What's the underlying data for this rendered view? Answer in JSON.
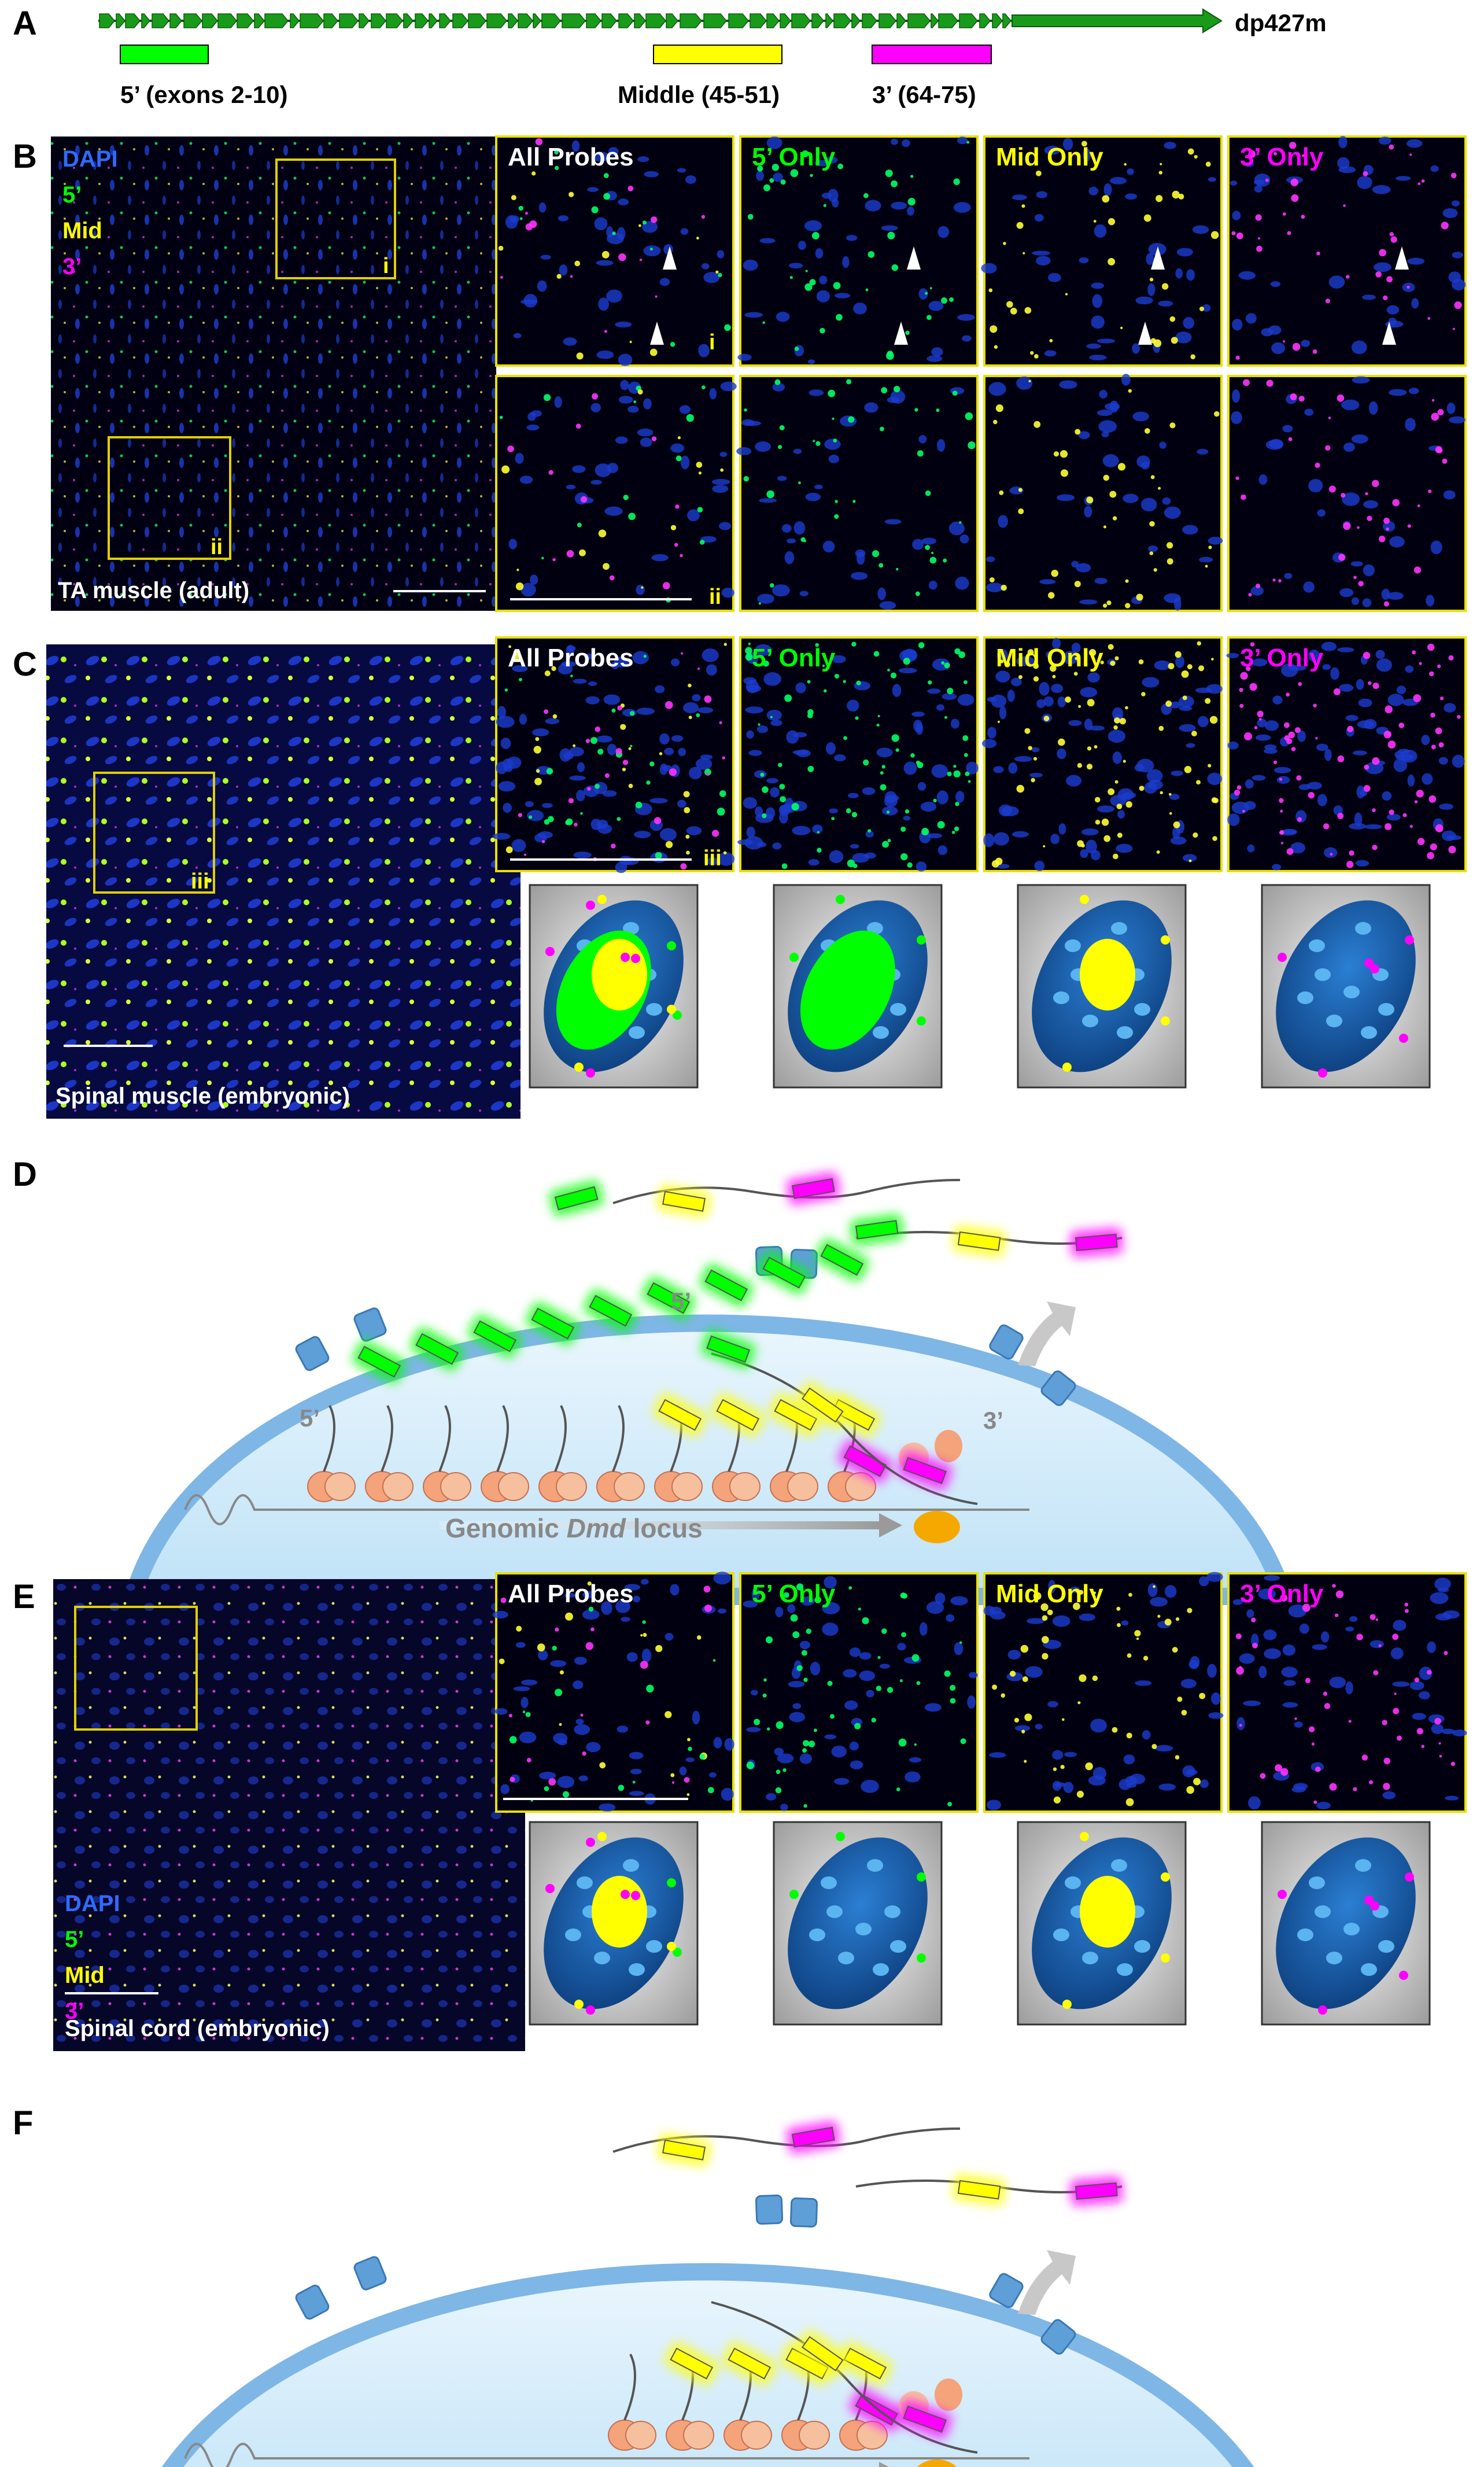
{
  "panels": {
    "a": {
      "letter": "A",
      "transcript": "dp427m",
      "probe_5": "5’ (exons 2-10)",
      "probe_mid": "Middle (45-51)",
      "probe_3": "3’ (64-75)"
    },
    "b": {
      "letter": "B",
      "legend": [
        "DAPI",
        "5’",
        "Mid",
        "3’"
      ],
      "tissue": "TA muscle (adult)",
      "inset_i": "i",
      "inset_ii": "ii",
      "columns": [
        "All Probes",
        "5’ Only",
        "Mid Only",
        "3’ Only"
      ]
    },
    "c": {
      "letter": "C",
      "tissue": "Spinal muscle (embryonic)",
      "inset": "iii",
      "columns": [
        "All Probes",
        "5’ Only",
        "Mid Only",
        "3’ Only"
      ]
    },
    "d": {
      "letter": "D",
      "label_5_top": "5’",
      "label_5_left": "5’",
      "label_3": "3’",
      "locus_prefix": "Genomic ",
      "locus_gene": "Dmd",
      "locus_suffix": " locus"
    },
    "e": {
      "letter": "E",
      "legend": [
        "DAPI",
        "5’",
        "Mid",
        "3’"
      ],
      "tissue": "Spinal cord (embryonic)",
      "columns": [
        "All Probes",
        "5’ Only",
        "Mid Only",
        "3’ Only"
      ]
    },
    "f": {
      "letter": "F"
    }
  },
  "colors": {
    "dapi": "#2e6bff",
    "probe_5": "#00ff00",
    "probe_mid": "#ffff00",
    "probe_3": "#ff00ff",
    "gene_arrow": "#1a9a1a",
    "cell_fill": "#d6ecfa",
    "membrane": "#7eb6e6",
    "nucleus": "#1f5fb0",
    "nucleolus": "#5ab4f0",
    "ribosome": "#f4a37a"
  }
}
